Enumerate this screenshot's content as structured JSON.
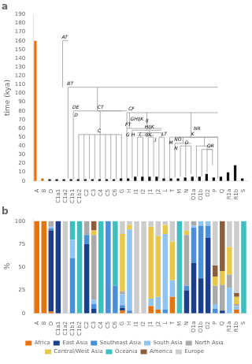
{
  "chart_data": [
    {
      "type": "bar",
      "title": "a",
      "ylabel": "time (kya)",
      "categories": [
        "A",
        "B",
        "D",
        "C1a1",
        "C1a2",
        "C1b1",
        "C1b2",
        "C2",
        "C3",
        "C4",
        "C5",
        "C6",
        "G",
        "H",
        "I1",
        "I2",
        "J1",
        "J2",
        "L",
        "T",
        "M",
        "N",
        "O1a",
        "O1b",
        "O2",
        "P",
        "Q",
        "R1a",
        "R1b",
        "S"
      ],
      "values": [
        160,
        3,
        2,
        2,
        2,
        2,
        2,
        2,
        2,
        2,
        2,
        2,
        3,
        3,
        5,
        5,
        5,
        5,
        3,
        3,
        3,
        4,
        5,
        5,
        8,
        4,
        5,
        10,
        18,
        3
      ],
      "colors": [
        "#E8720C",
        "#C8780A",
        "#111111",
        "#111111",
        "#111111",
        "#111111",
        "#111111",
        "#111111",
        "#111111",
        "#111111",
        "#111111",
        "#111111",
        "#111111",
        "#111111",
        "#111111",
        "#111111",
        "#111111",
        "#111111",
        "#111111",
        "#111111",
        "#111111",
        "#111111",
        "#111111",
        "#111111",
        "#111111",
        "#111111",
        "#111111",
        "#111111",
        "#111111",
        "#111111"
      ],
      "node_heights": [
        160,
        107,
        73,
        53,
        53,
        53,
        53,
        53,
        53,
        53,
        53,
        53,
        55,
        55,
        50,
        50,
        50,
        50,
        50,
        50,
        40,
        40,
        40,
        40,
        40,
        40,
        36,
        36,
        36,
        40
      ],
      "tree": {
        "color": "#999999",
        "branches": [
          [
            0,
            160,
            1,
            160
          ],
          [
            1,
            107,
            29,
            107
          ],
          [
            0,
            107,
            0,
            160
          ],
          [
            2,
            80,
            11,
            80
          ],
          [
            6.5,
            80,
            6.5,
            107
          ],
          [
            2,
            73,
            2,
            80
          ],
          [
            3,
            53,
            11,
            53
          ],
          [
            7,
            53,
            7,
            80
          ],
          [
            6.5,
            80,
            12,
            80
          ],
          [
            12,
            78,
            29,
            78
          ],
          [
            12,
            55,
            12,
            78
          ],
          [
            12,
            60,
            13,
            60
          ],
          [
            12.5,
            60,
            12.5,
            78
          ],
          [
            13,
            60,
            18.5,
            60
          ],
          [
            15.75,
            60,
            15.75,
            78
          ],
          [
            13,
            58,
            18.5,
            58
          ],
          [
            15.75,
            58,
            15.75,
            60
          ],
          [
            13,
            55,
            13,
            58
          ],
          [
            14,
            55,
            18.5,
            55
          ],
          [
            16.25,
            55,
            16.25,
            58
          ],
          [
            14,
            52,
            17,
            52
          ],
          [
            15.5,
            52,
            15.5,
            55
          ],
          [
            14,
            50,
            15,
            50
          ],
          [
            14.5,
            50,
            14.5,
            52
          ],
          [
            16,
            50,
            17,
            50
          ],
          [
            16.5,
            50,
            16.5,
            52
          ],
          [
            18,
            50,
            19,
            50
          ],
          [
            18.5,
            50,
            18.5,
            55
          ],
          [
            20,
            50,
            29,
            50
          ],
          [
            24,
            50,
            24,
            78
          ],
          [
            20,
            40,
            20,
            50
          ],
          [
            21,
            50,
            29,
            50
          ],
          [
            21,
            43,
            24,
            43
          ],
          [
            22.5,
            43,
            22.5,
            50
          ],
          [
            21,
            40,
            21,
            43
          ],
          [
            22,
            40,
            24,
            40
          ],
          [
            23,
            40,
            23,
            43
          ],
          [
            25,
            40,
            28,
            40
          ],
          [
            26.5,
            40,
            26.5,
            50
          ],
          [
            26,
            36,
            28,
            36
          ],
          [
            27,
            36,
            27,
            40
          ],
          [
            27,
            36,
            28,
            36
          ],
          [
            29,
            40,
            29,
            50
          ]
        ]
      },
      "annotations": [
        {
          "text": "AT",
          "x": -0.15,
          "y": 161
        },
        {
          "text": "BT",
          "x": 0.85,
          "y": 108
        },
        {
          "text": "DE",
          "x": 1.85,
          "y": 81
        },
        {
          "text": "D",
          "x": 2.15,
          "y": 72
        },
        {
          "text": "C",
          "x": 6.55,
          "y": 54
        },
        {
          "text": "CT",
          "x": 6.5,
          "y": 81
        },
        {
          "text": "CF",
          "x": 12.3,
          "y": 79
        },
        {
          "text": "FT",
          "x": 11.7,
          "y": 61
        },
        {
          "text": "G",
          "x": 11.85,
          "y": 56
        },
        {
          "text": "GHIJK",
          "x": 12.65,
          "y": 61
        },
        {
          "text": "H",
          "x": 12.85,
          "y": 56
        },
        {
          "text": "HIJK",
          "x": 15.35,
          "y": 59
        },
        {
          "text": "IJK",
          "x": 15.5,
          "y": 56
        },
        {
          "text": "IJ",
          "x": 15.5,
          "y": 53
        },
        {
          "text": "I",
          "x": 14.35,
          "y": 51
        },
        {
          "text": "J",
          "x": 16.35,
          "y": 51
        },
        {
          "text": "LT",
          "x": 18.5,
          "y": 51
        },
        {
          "text": "K",
          "x": 24,
          "y": 51
        },
        {
          "text": "NR",
          "x": 24.5,
          "y": 51
        },
        {
          "text": "NO",
          "x": 20.85,
          "y": 44
        },
        {
          "text": "M",
          "x": 19.85,
          "y": 41
        },
        {
          "text": "N",
          "x": 20.85,
          "y": 41
        },
        {
          "text": "O",
          "x": 22.85,
          "y": 41
        },
        {
          "text": "QR",
          "x": 27,
          "y": 37
        }
      ],
      "ylim": [
        0,
        190
      ],
      "yticks": [
        0,
        10,
        20,
        30,
        40,
        50,
        60,
        70,
        80,
        90,
        100,
        110,
        120,
        130,
        140,
        150,
        160,
        170,
        180,
        190
      ],
      "grid": false
    },
    {
      "type": "bar",
      "title": "b",
      "ylabel": "%",
      "stacked": true,
      "legend": "bottom",
      "categories": [
        "A",
        "B",
        "D",
        "C1a1",
        "C1a2",
        "C1b1",
        "C1b2",
        "C2",
        "C3",
        "C4",
        "C5",
        "C6",
        "G",
        "H",
        "I1",
        "I2",
        "J1",
        "J2",
        "L",
        "T",
        "M",
        "N",
        "O1a",
        "O1b",
        "O2",
        "P",
        "Q",
        "R1a",
        "R1b",
        "S"
      ],
      "series": [
        {
          "name": "Africa",
          "color": "#E8720C",
          "values": [
            100,
            100,
            2,
            0,
            0,
            0,
            0,
            0,
            0,
            0,
            0,
            0,
            3,
            0,
            0,
            0,
            8,
            4,
            0,
            18,
            0,
            0,
            0,
            0,
            0,
            0,
            0,
            0,
            4,
            0
          ]
        },
        {
          "name": "East Asia",
          "color": "#1B3F8B",
          "values": [
            0,
            0,
            88,
            100,
            0,
            0,
            0,
            75,
            5,
            0,
            0,
            0,
            3,
            0,
            0,
            0,
            0,
            0,
            0,
            0,
            0,
            25,
            55,
            38,
            82,
            0,
            3,
            0,
            0,
            0
          ]
        },
        {
          "name": "Southeast Asia",
          "color": "#4A90D9",
          "values": [
            0,
            0,
            2,
            0,
            0,
            60,
            0,
            10,
            5,
            0,
            100,
            30,
            3,
            3,
            0,
            0,
            0,
            0,
            4,
            0,
            0,
            5,
            38,
            57,
            13,
            5,
            0,
            0,
            0,
            0
          ]
        },
        {
          "name": "South Asia",
          "color": "#91C4F2",
          "values": [
            0,
            0,
            2,
            0,
            0,
            20,
            0,
            0,
            5,
            0,
            0,
            0,
            12,
            88,
            0,
            0,
            8,
            14,
            82,
            18,
            0,
            0,
            2,
            5,
            5,
            5,
            0,
            28,
            4,
            0
          ]
        },
        {
          "name": "North Asia",
          "color": "#AAAAAA",
          "values": [
            0,
            0,
            6,
            0,
            0,
            0,
            0,
            15,
            70,
            0,
            0,
            0,
            3,
            0,
            0,
            0,
            0,
            0,
            0,
            0,
            0,
            55,
            5,
            0,
            0,
            20,
            28,
            14,
            2,
            0
          ]
        },
        {
          "name": "Central/West Asia",
          "color": "#E8C84A",
          "values": [
            0,
            0,
            0,
            0,
            0,
            0,
            0,
            0,
            5,
            0,
            0,
            0,
            62,
            5,
            0,
            0,
            78,
            66,
            10,
            42,
            0,
            5,
            0,
            0,
            0,
            10,
            15,
            30,
            8,
            0
          ]
        },
        {
          "name": "Oceania",
          "color": "#3DBFBF",
          "values": [
            0,
            0,
            0,
            0,
            0,
            20,
            100,
            0,
            0,
            100,
            0,
            70,
            0,
            0,
            0,
            0,
            0,
            0,
            0,
            0,
            100,
            0,
            0,
            0,
            0,
            0,
            0,
            0,
            0,
            100
          ]
        },
        {
          "name": "America",
          "color": "#8B5E3C",
          "values": [
            0,
            0,
            0,
            0,
            0,
            0,
            0,
            0,
            10,
            0,
            0,
            0,
            0,
            0,
            0,
            0,
            0,
            0,
            0,
            0,
            0,
            0,
            0,
            0,
            0,
            12,
            54,
            0,
            4,
            0
          ]
        },
        {
          "name": "Europe",
          "color": "#CCCCCC",
          "values": [
            0,
            0,
            0,
            0,
            100,
            0,
            0,
            0,
            0,
            0,
            0,
            0,
            14,
            4,
            100,
            100,
            6,
            16,
            4,
            22,
            0,
            10,
            0,
            0,
            0,
            48,
            0,
            28,
            78,
            0
          ]
        }
      ],
      "ylim": [
        0,
        102
      ],
      "yticks": [
        0,
        25,
        50,
        75,
        100
      ],
      "grid": false
    }
  ]
}
